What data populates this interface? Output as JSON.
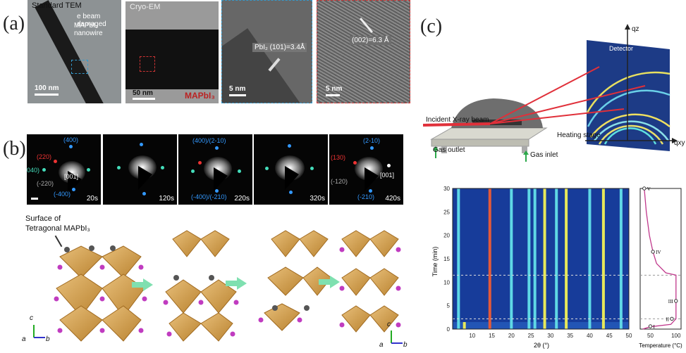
{
  "panel_a": {
    "label": "(a)",
    "images": [
      {
        "title": "Standard TEM",
        "annotation_line1": "e beam damaged",
        "annotation_line2": "MAPbI₃ nanowire",
        "scale": "100 nm"
      },
      {
        "title": "Cryo-EM",
        "scale": "50 nm",
        "material": "MAPbI₃"
      },
      {
        "annotation": "PbI₂ (101)=3.4Å",
        "scale": "5 nm"
      },
      {
        "annotation": "(002)=6.3 Å",
        "scale": "5 nm"
      }
    ]
  },
  "panel_b": {
    "label": "(b)",
    "times": [
      "20s",
      "120s",
      "220s",
      "320s",
      "420s"
    ],
    "frame1": {
      "i400": "(400)",
      "i220": "(220)",
      "i040": "040)",
      "i001": "[001]",
      "i_220": "(-220)",
      "i_400": "(-400)"
    },
    "frame3": {
      "top": "(400)/(2-10)",
      "bottom": "(-400)/(-210)"
    },
    "frame5": {
      "top": "(2-10)",
      "i130": "(130)",
      "i001": "[001]",
      "i_120": "(-120)",
      "bottom": "(-210)"
    },
    "surface_label": "Surface of Tetragonal MAPbI₃",
    "axes": {
      "c": "c",
      "a": "a",
      "b": "b"
    }
  },
  "panel_c": {
    "label": "(c)",
    "schematic": {
      "incident": "Incident X-ray beam",
      "heating": "Heating stage",
      "gas_outlet": "Gas outlet",
      "gas_inlet": "Gas inlet",
      "detector": "Detector",
      "qz": "qz",
      "qxy": "qxy"
    },
    "heatmap": {
      "ylabel": "Time (min)",
      "xlabel": "2θ (°)",
      "xticks": [
        "10",
        "15",
        "20",
        "25",
        "30",
        "35",
        "40",
        "45",
        "50"
      ],
      "yticks": [
        "0",
        "5",
        "10",
        "15",
        "20",
        "25",
        "30"
      ]
    },
    "temp": {
      "xlabel": "Temperature (°C)",
      "xticks": [
        "50",
        "100"
      ],
      "stages": [
        "V",
        "IV",
        "III",
        "II",
        "I"
      ]
    }
  },
  "chart_data": {
    "type": "heatmap",
    "x_label": "2θ (°)",
    "y_label": "Time (min)",
    "xlim": [
      5,
      50
    ],
    "ylim": [
      0,
      30
    ],
    "peaks_2theta": [
      {
        "x": 6.5,
        "t_start": 0,
        "t_end": 30,
        "color": "#5fd8e6"
      },
      {
        "x": 8.0,
        "t_start": 0,
        "t_end": 1.5,
        "color": "#e8e85a"
      },
      {
        "x": 14.5,
        "t_start": 0,
        "t_end": 30,
        "color": "#e25a3a"
      },
      {
        "x": 20.0,
        "t_start": 0,
        "t_end": 30,
        "color": "#5fd8e6"
      },
      {
        "x": 24.5,
        "t_start": 0,
        "t_end": 30,
        "color": "#5fd8e6"
      },
      {
        "x": 26.0,
        "t_start": 0,
        "t_end": 30,
        "color": "#5fd8e6"
      },
      {
        "x": 28.5,
        "t_start": 0,
        "t_end": 30,
        "color": "#e8e85a"
      },
      {
        "x": 31.5,
        "t_start": 0,
        "t_end": 30,
        "color": "#5fd8e6"
      },
      {
        "x": 34.0,
        "t_start": 0,
        "t_end": 30,
        "color": "#e8e85a"
      },
      {
        "x": 40.0,
        "t_start": 0,
        "t_end": 30,
        "color": "#5fd8e6"
      },
      {
        "x": 43.5,
        "t_start": 0,
        "t_end": 30,
        "color": "#e8e85a"
      },
      {
        "x": 48.0,
        "t_start": 0,
        "t_end": 30,
        "color": "#5fd8e6"
      }
    ],
    "dashed_lines_min": [
      11.5,
      2.2
    ],
    "temperature_profile": {
      "time_min": [
        0,
        0.5,
        1.0,
        2.2,
        4,
        6,
        8,
        10,
        11.5,
        12,
        14,
        16.5,
        20,
        25,
        30
      ],
      "temp_c": [
        35,
        50,
        90,
        100,
        100,
        100,
        100,
        100,
        100,
        80,
        62,
        55,
        48,
        42,
        38
      ],
      "xlim": [
        30,
        110
      ]
    }
  }
}
